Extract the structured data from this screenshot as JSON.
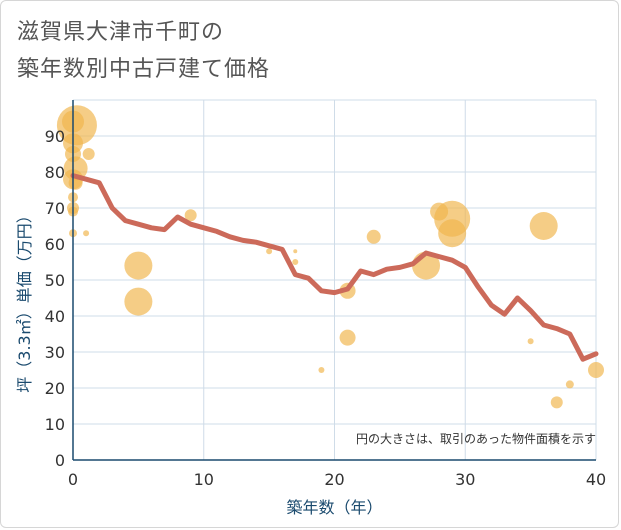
{
  "title": "滋賀県大津市千町の\n築年数別中古戸建て価格",
  "chart_data": {
    "type": "scatter",
    "title": "滋賀県大津市千町の築年数別中古戸建て価格",
    "xlabel": "築年数（年）",
    "ylabel": "坪（3.3㎡）単価（万円）",
    "xlim": [
      0,
      40
    ],
    "ylim": [
      0,
      100
    ],
    "x_ticks": [
      0,
      10,
      20,
      30,
      40
    ],
    "y_ticks": [
      0,
      10,
      20,
      30,
      40,
      50,
      60,
      70,
      80,
      90
    ],
    "grid": true,
    "annotation": "円の大きさは、取引のあった物件面積を示す",
    "colors": {
      "bubble": "#f0b54d",
      "line": "#cc6a5a",
      "grid": "#cfdce8",
      "axis": "#1a4a6e"
    },
    "series": [
      {
        "kind": "bubble",
        "points": [
          {
            "x": 0.3,
            "y": 93,
            "s": 40
          },
          {
            "x": 0,
            "y": 94,
            "s": 22
          },
          {
            "x": 0,
            "y": 88,
            "s": 20
          },
          {
            "x": 0,
            "y": 85,
            "s": 16
          },
          {
            "x": 0.2,
            "y": 81,
            "s": 24
          },
          {
            "x": 0,
            "y": 78,
            "s": 20
          },
          {
            "x": 0.2,
            "y": 77,
            "s": 14
          },
          {
            "x": 0,
            "y": 73,
            "s": 10
          },
          {
            "x": 0,
            "y": 70,
            "s": 12
          },
          {
            "x": 0,
            "y": 69,
            "s": 10
          },
          {
            "x": 0,
            "y": 63,
            "s": 8
          },
          {
            "x": 1.2,
            "y": 85,
            "s": 12
          },
          {
            "x": 1,
            "y": 63,
            "s": 6
          },
          {
            "x": 5,
            "y": 54,
            "s": 28
          },
          {
            "x": 5,
            "y": 44,
            "s": 28
          },
          {
            "x": 9,
            "y": 68,
            "s": 12
          },
          {
            "x": 15,
            "y": 58,
            "s": 6
          },
          {
            "x": 17,
            "y": 55,
            "s": 6
          },
          {
            "x": 17,
            "y": 58,
            "s": 4
          },
          {
            "x": 19,
            "y": 25,
            "s": 6
          },
          {
            "x": 21,
            "y": 47,
            "s": 16
          },
          {
            "x": 21,
            "y": 34,
            "s": 16
          },
          {
            "x": 23,
            "y": 62,
            "s": 14
          },
          {
            "x": 27,
            "y": 54,
            "s": 28
          },
          {
            "x": 28,
            "y": 69,
            "s": 18
          },
          {
            "x": 29,
            "y": 67,
            "s": 36
          },
          {
            "x": 29,
            "y": 63,
            "s": 28
          },
          {
            "x": 35,
            "y": 33,
            "s": 6
          },
          {
            "x": 36,
            "y": 65,
            "s": 28
          },
          {
            "x": 37,
            "y": 16,
            "s": 12
          },
          {
            "x": 38,
            "y": 21,
            "s": 8
          },
          {
            "x": 40,
            "y": 25,
            "s": 16
          }
        ]
      },
      {
        "kind": "line",
        "points": [
          {
            "x": 0,
            "y": 79
          },
          {
            "x": 1,
            "y": 78
          },
          {
            "x": 2,
            "y": 77
          },
          {
            "x": 3,
            "y": 70
          },
          {
            "x": 4,
            "y": 66.5
          },
          {
            "x": 5,
            "y": 65.5
          },
          {
            "x": 6,
            "y": 64.5
          },
          {
            "x": 7,
            "y": 64
          },
          {
            "x": 8,
            "y": 67.5
          },
          {
            "x": 9,
            "y": 65.5
          },
          {
            "x": 10,
            "y": 64.5
          },
          {
            "x": 11,
            "y": 63.5
          },
          {
            "x": 12,
            "y": 62
          },
          {
            "x": 13,
            "y": 61
          },
          {
            "x": 14,
            "y": 60.5
          },
          {
            "x": 15,
            "y": 59.5
          },
          {
            "x": 16,
            "y": 58.5
          },
          {
            "x": 17,
            "y": 51.5
          },
          {
            "x": 18,
            "y": 50.5
          },
          {
            "x": 19,
            "y": 47
          },
          {
            "x": 20,
            "y": 46.5
          },
          {
            "x": 21,
            "y": 47.5
          },
          {
            "x": 22,
            "y": 52.5
          },
          {
            "x": 23,
            "y": 51.5
          },
          {
            "x": 24,
            "y": 53
          },
          {
            "x": 25,
            "y": 53.5
          },
          {
            "x": 26,
            "y": 54.5
          },
          {
            "x": 27,
            "y": 57.5
          },
          {
            "x": 28,
            "y": 56.5
          },
          {
            "x": 29,
            "y": 55.5
          },
          {
            "x": 30,
            "y": 53.5
          },
          {
            "x": 31,
            "y": 48
          },
          {
            "x": 32,
            "y": 43
          },
          {
            "x": 33,
            "y": 40.5
          },
          {
            "x": 34,
            "y": 45
          },
          {
            "x": 35,
            "y": 41.5
          },
          {
            "x": 36,
            "y": 37.5
          },
          {
            "x": 37,
            "y": 36.5
          },
          {
            "x": 38,
            "y": 35
          },
          {
            "x": 39,
            "y": 28
          },
          {
            "x": 40,
            "y": 29.5
          }
        ]
      }
    ]
  }
}
